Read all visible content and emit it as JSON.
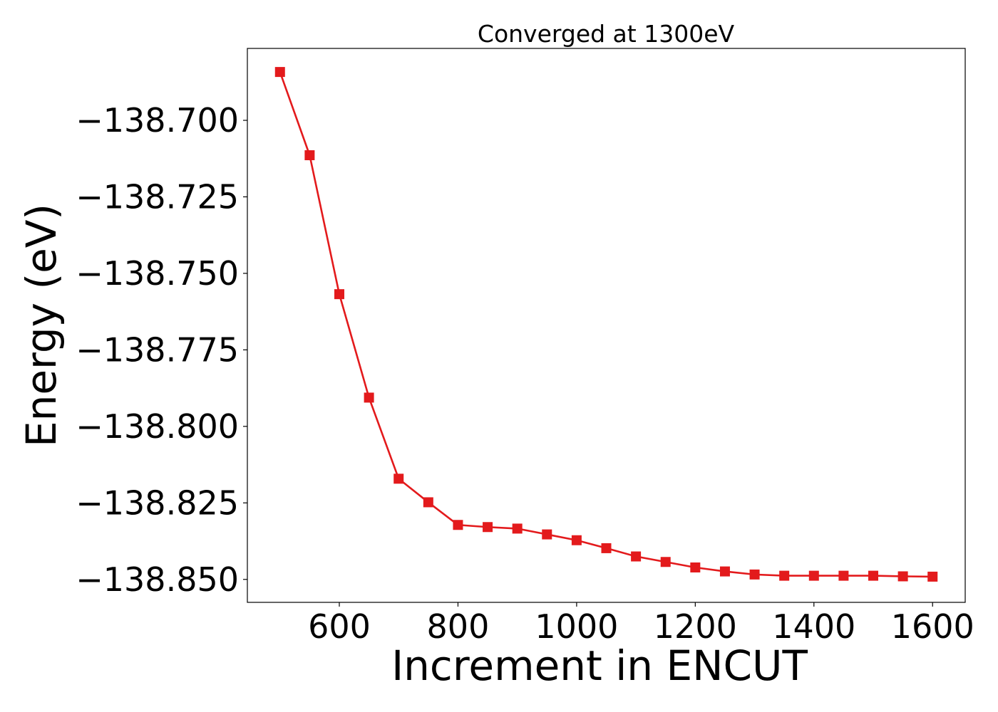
{
  "chart_data": {
    "type": "line",
    "title": "Converged at 1300eV",
    "xlabel": "Increment in ENCUT",
    "ylabel": "Energy (eV)",
    "xlim": [
      445,
      1655
    ],
    "ylim": [
      -138.8575,
      -138.6765
    ],
    "xticks": [
      600,
      800,
      1000,
      1200,
      1400,
      1600
    ],
    "xtick_labels": [
      "600",
      "800",
      "1000",
      "1200",
      "1400",
      "1600"
    ],
    "yticks": [
      -138.7,
      -138.725,
      -138.75,
      -138.775,
      -138.8,
      -138.825,
      -138.85
    ],
    "ytick_labels": [
      "−138.700",
      "−138.725",
      "−138.750",
      "−138.775",
      "−138.800",
      "−138.825",
      "−138.850"
    ],
    "grid": false,
    "series": [
      {
        "color": "#e31a1c",
        "marker": "square",
        "x": [
          500,
          550,
          600,
          650,
          700,
          750,
          800,
          850,
          900,
          950,
          1000,
          1050,
          1100,
          1150,
          1200,
          1250,
          1300,
          1350,
          1400,
          1450,
          1500,
          1550,
          1600
        ],
        "y": [
          -138.6842,
          -138.7114,
          -138.7568,
          -138.7906,
          -138.8171,
          -138.8248,
          -138.8322,
          -138.8329,
          -138.8334,
          -138.8353,
          -138.8372,
          -138.8398,
          -138.8425,
          -138.8443,
          -138.8461,
          -138.8474,
          -138.8484,
          -138.8488,
          -138.8488,
          -138.8488,
          -138.8488,
          -138.849,
          -138.8491
        ]
      }
    ]
  }
}
